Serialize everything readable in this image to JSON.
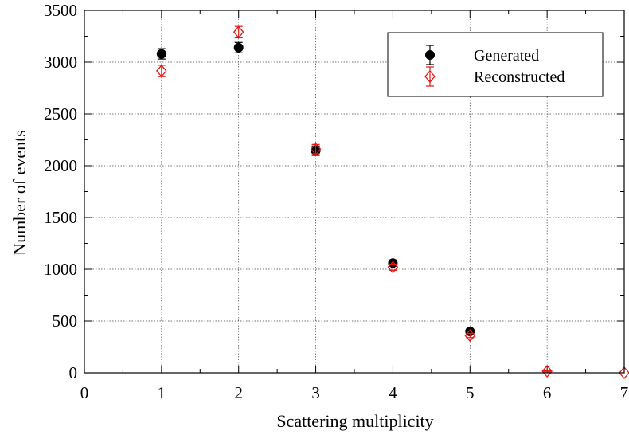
{
  "chart_data": {
    "type": "scatter",
    "xlabel": "Scattering multiplicity",
    "ylabel": "Number of events",
    "xlim": [
      0,
      7
    ],
    "ylim": [
      0,
      3500
    ],
    "x_ticks": [
      0,
      1,
      2,
      3,
      4,
      5,
      6,
      7
    ],
    "y_ticks": [
      0,
      500,
      1000,
      1500,
      2000,
      2500,
      3000,
      3500
    ],
    "grid": true,
    "legend_position": "top-right",
    "series": [
      {
        "name": "Generated",
        "marker": "filled-circle",
        "color": "#000000",
        "x": [
          1,
          2,
          3,
          4,
          5
        ],
        "y": [
          3080,
          3140,
          2145,
          1060,
          400
        ],
        "yerr": [
          50,
          50,
          45,
          30,
          20
        ]
      },
      {
        "name": "Reconstructed",
        "marker": "open-diamond",
        "color": "#e8140f",
        "x": [
          1,
          2,
          3,
          4,
          5,
          6,
          7
        ],
        "y": [
          2915,
          3290,
          2160,
          1020,
          360,
          15,
          0
        ],
        "yerr": [
          55,
          55,
          45,
          30,
          20,
          5,
          0
        ]
      }
    ]
  }
}
